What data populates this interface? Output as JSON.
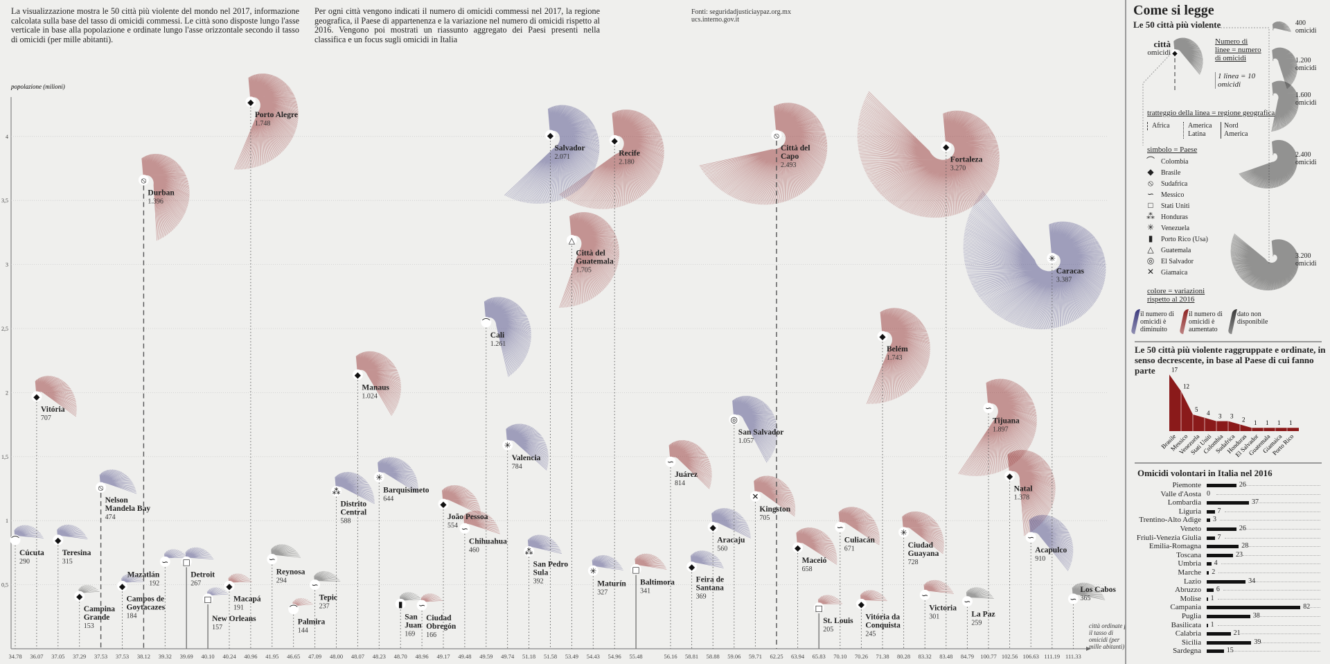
{
  "intro": {
    "left": "La visualizzazione mostra le 50 città più violente del mondo nel 2017, informazione calcolata sulla base del tasso di omicidi commessi. Le città sono disposte lungo l'asse verticale in base alla popolazione e ordinate lungo l'asse orizzontale secondo il tasso di omicidi (per mille abitanti).",
    "right": "Per ogni città vengono indicati il numero di omicidi commessi nel 2017, la regione geografica, il Paese di appartenenza e la variazione nel numero di omicidi rispetto al 2016. Vengono poi mostrati un riassunto aggregato dei Paesi presenti nella classifica e un focus sugli omicidi in Italia",
    "sources_1": "Fonti: seguridadjusticiaypaz.org.mx",
    "sources_2": "ucs.interno.gov.it"
  },
  "colors": {
    "down": "#3d3b7e",
    "up": "#8e2323",
    "na": "#3a3a3a",
    "bg": "#efefed",
    "bar": "#8a1a1a"
  },
  "countries": [
    {
      "name": "Colombia",
      "icon": "colombia-arch-icon",
      "glyph": "⌒"
    },
    {
      "name": "Brasile",
      "icon": "brasile-diamond-icon",
      "glyph": "◆"
    },
    {
      "name": "Sudafrica",
      "icon": "sudafrica-circle-slash-icon",
      "glyph": "⦸"
    },
    {
      "name": "Messico",
      "icon": "messico-wave-icon",
      "glyph": "∽"
    },
    {
      "name": "Stati Uniti",
      "icon": "stati-uniti-square-icon",
      "glyph": "□"
    },
    {
      "name": "Honduras",
      "icon": "honduras-dots-icon",
      "glyph": "⁂"
    },
    {
      "name": "Venezuela",
      "icon": "venezuela-star-icon",
      "glyph": "✳"
    },
    {
      "name": "Porto Rico (Usa)",
      "icon": "porto-rico-bar-icon",
      "glyph": "▮"
    },
    {
      "name": "Guatemala",
      "icon": "guatemala-triangle-icon",
      "glyph": "△"
    },
    {
      "name": "El Salvador",
      "icon": "el-salvador-target-icon",
      "glyph": "◎"
    },
    {
      "name": "Giamaica",
      "icon": "giamaica-cross-icon",
      "glyph": "✕"
    }
  ],
  "chart_data": {
    "type": "scatter",
    "title": "Le 50 città più violente del mondo nel 2017",
    "ylabel": "popolazione (milioni)",
    "xlabel": "città ordinate per il tasso di omicidi (per mille abitanti)",
    "ylim": [
      0,
      4.4
    ],
    "yticks": [
      "0,5",
      "1",
      "1,5",
      "2",
      "2,5",
      "3",
      "3,5",
      "4"
    ],
    "ytick_values": [
      0.5,
      1,
      1.5,
      2,
      2.5,
      3,
      3.5,
      4
    ],
    "cities": [
      {
        "name": "Cúcuta",
        "homicides": "290",
        "population": 0.85,
        "rate": "34.78",
        "country": 0,
        "change": "down"
      },
      {
        "name": "Vitória",
        "homicides": "707",
        "population": 1.97,
        "rate": "36.07",
        "country": 1,
        "change": "up"
      },
      {
        "name": "Teresina",
        "homicides": "315",
        "population": 0.85,
        "rate": "37.05",
        "country": 1,
        "change": "down"
      },
      {
        "name": "Campina Grande",
        "homicides": "153",
        "population": 0.41,
        "rate": "37.29",
        "country": 1,
        "change": "na"
      },
      {
        "name": "Nelson Mandela Bay",
        "homicides": "474",
        "population": 1.26,
        "rate": "37.53",
        "country": 2,
        "change": "down"
      },
      {
        "name": "Campos de Goytacazes",
        "homicides": "184",
        "population": 0.49,
        "rate": "37.53",
        "country": 1,
        "change": "down"
      },
      {
        "name": "Durban",
        "homicides": "1.396",
        "population": 3.66,
        "rate": "38.12",
        "country": 2,
        "change": "up"
      },
      {
        "name": "Mazatlán",
        "homicides": "192",
        "population": 0.68,
        "rate": "39.32",
        "country": 3,
        "change": "down"
      },
      {
        "name": "Detroit",
        "homicides": "267",
        "population": 0.68,
        "rate": "39.69",
        "country": 4,
        "change": "down"
      },
      {
        "name": "New Orleans",
        "homicides": "157",
        "population": 0.39,
        "rate": "40.10",
        "country": 4,
        "change": "down"
      },
      {
        "name": "Macapá",
        "homicides": "191",
        "population": 0.49,
        "rate": "40.24",
        "country": 1,
        "change": "up"
      },
      {
        "name": "Porto Alegre",
        "homicides": "1.748",
        "population": 4.27,
        "rate": "40.96",
        "country": 1,
        "change": "up"
      },
      {
        "name": "Reynosa",
        "homicides": "294",
        "population": 0.7,
        "rate": "41.95",
        "country": 3,
        "change": "na"
      },
      {
        "name": "Palmira",
        "homicides": "144",
        "population": 0.31,
        "rate": "46.65",
        "country": 0,
        "change": "up"
      },
      {
        "name": "Tepic",
        "homicides": "237",
        "population": 0.5,
        "rate": "47.09",
        "country": 3,
        "change": "na"
      },
      {
        "name": "Distrito Central",
        "homicides": "588",
        "population": 1.23,
        "rate": "48.00",
        "country": 5,
        "change": "down"
      },
      {
        "name": "Manaus",
        "homicides": "1.024",
        "population": 2.14,
        "rate": "48.07",
        "country": 1,
        "change": "up"
      },
      {
        "name": "Barquisimeto",
        "homicides": "644",
        "population": 1.34,
        "rate": "48.23",
        "country": 6,
        "change": "down"
      },
      {
        "name": "San Juan",
        "homicides": "169",
        "population": 0.35,
        "rate": "48.70",
        "country": 7,
        "change": "na"
      },
      {
        "name": "Ciudad Obregón",
        "homicides": "166",
        "population": 0.34,
        "rate": "48.96",
        "country": 3,
        "change": "up"
      },
      {
        "name": "João Pessoa",
        "homicides": "554",
        "population": 1.13,
        "rate": "49.17",
        "country": 1,
        "change": "up"
      },
      {
        "name": "Chihuahua",
        "homicides": "460",
        "population": 0.94,
        "rate": "49.48",
        "country": 3,
        "change": "up"
      },
      {
        "name": "Cali",
        "homicides": "1.261",
        "population": 2.55,
        "rate": "49.59",
        "country": 0,
        "change": "down"
      },
      {
        "name": "Valencia",
        "homicides": "784",
        "population": 1.59,
        "rate": "49.74",
        "country": 6,
        "change": "down"
      },
      {
        "name": "San Pedro Sula",
        "homicides": "392",
        "population": 0.76,
        "rate": "51.18",
        "country": 5,
        "change": "down"
      },
      {
        "name": "Salvador",
        "homicides": "2.071",
        "population": 4.01,
        "rate": "51.58",
        "country": 1,
        "change": "down"
      },
      {
        "name": "Città del Guatemala",
        "homicides": "1.705",
        "population": 3.19,
        "rate": "53.49",
        "country": 8,
        "change": "up"
      },
      {
        "name": "Maturín",
        "homicides": "327",
        "population": 0.61,
        "rate": "54.43",
        "country": 6,
        "change": "down"
      },
      {
        "name": "Recife",
        "homicides": "2.180",
        "population": 3.97,
        "rate": "54.96",
        "country": 1,
        "change": "up"
      },
      {
        "name": "Baltimora",
        "homicides": "341",
        "population": 0.62,
        "rate": "55.48",
        "country": 4,
        "change": "up"
      },
      {
        "name": "Juárez",
        "homicides": "814",
        "population": 1.46,
        "rate": "56.16",
        "country": 3,
        "change": "up"
      },
      {
        "name": "Feira de Santana",
        "homicides": "369",
        "population": 0.64,
        "rate": "58.81",
        "country": 1,
        "change": "down"
      },
      {
        "name": "Aracaju",
        "homicides": "560",
        "population": 0.95,
        "rate": "58.88",
        "country": 1,
        "change": "down"
      },
      {
        "name": "San Salvador",
        "homicides": "1.057",
        "population": 1.79,
        "rate": "59.06",
        "country": 9,
        "change": "down"
      },
      {
        "name": "Kingston",
        "homicides": "705",
        "population": 1.19,
        "rate": "59.71",
        "country": 10,
        "change": "up"
      },
      {
        "name": "Città del Capo",
        "homicides": "2.493",
        "population": 4.01,
        "rate": "62.25",
        "country": 2,
        "change": "up"
      },
      {
        "name": "Maceió",
        "homicides": "658",
        "population": 0.79,
        "rate": "63.94",
        "country": 1,
        "change": "up"
      },
      {
        "name": "St. Louis",
        "homicides": "205",
        "population": 0.32,
        "rate": "65.83",
        "country": 4,
        "change": "up"
      },
      {
        "name": "Culiacán",
        "homicides": "671",
        "population": 0.95,
        "rate": "70.10",
        "country": 3,
        "change": "up"
      },
      {
        "name": "Vitória da Conquista",
        "homicides": "245",
        "population": 0.35,
        "rate": "70.26",
        "country": 1,
        "change": "up"
      },
      {
        "name": "Belém",
        "homicides": "1.743",
        "population": 2.44,
        "rate": "71.38",
        "country": 1,
        "change": "up"
      },
      {
        "name": "Ciudad Guayana",
        "homicides": "728",
        "population": 0.91,
        "rate": "80.28",
        "country": 6,
        "change": "up"
      },
      {
        "name": "Victoria",
        "homicides": "301",
        "population": 0.42,
        "rate": "83.32",
        "country": 3,
        "change": "up"
      },
      {
        "name": "Fortaleza",
        "homicides": "3.270",
        "population": 3.92,
        "rate": "83.48",
        "country": 1,
        "change": "up"
      },
      {
        "name": "La Paz",
        "homicides": "259",
        "population": 0.37,
        "rate": "84.79",
        "country": 3,
        "change": "na"
      },
      {
        "name": "Tijuana",
        "homicides": "1.897",
        "population": 1.88,
        "rate": "100.77",
        "country": 3,
        "change": "up"
      },
      {
        "name": "Natal",
        "homicides": "1.378",
        "population": 1.35,
        "rate": "102.56",
        "country": 1,
        "change": "up"
      },
      {
        "name": "Acapulco",
        "homicides": "910",
        "population": 0.87,
        "rate": "106.63",
        "country": 3,
        "change": "down"
      },
      {
        "name": "Caracas",
        "homicides": "3.387",
        "population": 3.05,
        "rate": "111.19",
        "country": 6,
        "change": "down"
      },
      {
        "name": "Los Cabos",
        "homicides": "365",
        "population": 0.39,
        "rate": "111.33",
        "country": 3,
        "change": "na"
      }
    ],
    "countries_chart": {
      "type": "area",
      "title": "Le 50 città più violente raggruppate e ordinate, in senso decrescente, in base al Paese di cui fanno parte",
      "categories": [
        "Brasile",
        "Messico",
        "Venezuela",
        "Stati Uniti",
        "Colombia",
        "Sudafrica",
        "Honduras",
        "El Salvador",
        "Guatemala",
        "Giamaica",
        "Porto Rico"
      ],
      "values": [
        17,
        12,
        5,
        4,
        3,
        3,
        2,
        1,
        1,
        1,
        1
      ]
    },
    "italy_chart": {
      "type": "bar",
      "title": "Omicidi volontari in Italia nel 2016",
      "categories": [
        "Piemonte",
        "Valle d'Aosta",
        "Lombardia",
        "Liguria",
        "Trentino-Alto Adige",
        "Veneto",
        "Friuli-Venezia Giulia",
        "Emilia-Romagna",
        "Toscana",
        "Umbria",
        "Marche",
        "Lazio",
        "Abruzzo",
        "Molise",
        "Campania",
        "Puglia",
        "Basilicata",
        "Calabria",
        "Sicilia",
        "Sardegna"
      ],
      "values": [
        26,
        0,
        37,
        7,
        3,
        26,
        7,
        28,
        23,
        4,
        2,
        34,
        6,
        1,
        82,
        38,
        1,
        21,
        39,
        15
      ]
    }
  },
  "legend": {
    "title": "Come si legge",
    "subtitle": "Le 50 città più violente",
    "sample_city": "città",
    "sample_homicides": "omicidi",
    "lines_note": "Numero di linee = numero di omicidi",
    "line_unit": "1 linea = 10 omicidi",
    "scale": [
      {
        "value": 400,
        "label": "400 omicidi"
      },
      {
        "value": 1200,
        "label": "1.200 omicidi"
      },
      {
        "value": 1600,
        "label": "1.600 omicidi"
      },
      {
        "value": 2400,
        "label": "2.400 omicidi"
      },
      {
        "value": 3200,
        "label": "3.200 omicidi"
      }
    ],
    "region_title": "tratteggio della linea = regione geografica",
    "regions": [
      "Africa",
      "America Latina",
      "Nord America"
    ],
    "symbol_title": "simbolo = Paese",
    "color_title": "colore = variazioni rispetto al 2016",
    "color_items": [
      {
        "key": "down",
        "label": "il numero di omicidi è diminuito"
      },
      {
        "key": "up",
        "label": "il numero di omicidi è aumentato"
      },
      {
        "key": "na",
        "label": "dato non disponibile"
      }
    ]
  }
}
